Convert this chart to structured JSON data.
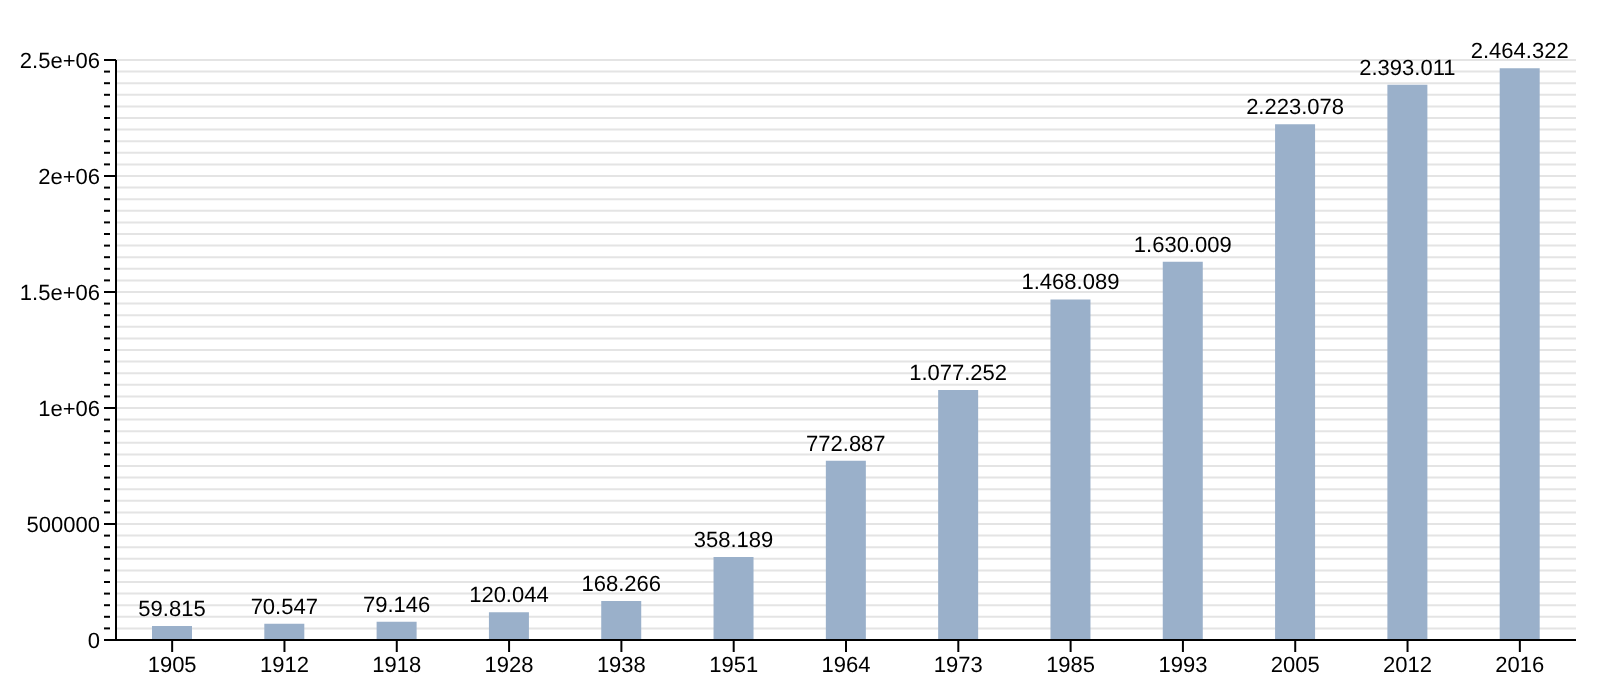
{
  "chart_data": {
    "type": "bar",
    "categories": [
      "1905",
      "1912",
      "1918",
      "1928",
      "1938",
      "1951",
      "1964",
      "1973",
      "1985",
      "1993",
      "2005",
      "2012",
      "2016"
    ],
    "values": [
      59815,
      70547,
      79146,
      120044,
      168266,
      358189,
      772887,
      1077252,
      1468089,
      1630009,
      2223078,
      2393011,
      2464322
    ],
    "value_labels": [
      "59.815",
      "70.547",
      "79.146",
      "120.044",
      "168.266",
      "358.189",
      "772.887",
      "1.077.252",
      "1.468.089",
      "1.630.009",
      "2.223.078",
      "2.393.011",
      "2.464.322"
    ],
    "color": "#9ab0ca",
    "ylim": [
      0,
      2500000
    ],
    "yticks": [
      0,
      {
        "value": 50000,
        "label": null
      },
      {
        "value": 100000,
        "label": null
      },
      {
        "value": 150000,
        "label": null
      },
      {
        "value": 200000,
        "label": null
      },
      {
        "value": 250000,
        "label": null
      },
      {
        "value": 300000,
        "label": null
      },
      {
        "value": 350000,
        "label": null
      },
      {
        "value": 400000,
        "label": null
      },
      {
        "value": 450000,
        "label": null
      },
      500000,
      {
        "value": 550000,
        "label": null
      },
      {
        "value": 600000,
        "label": null
      },
      {
        "value": 650000,
        "label": null
      },
      {
        "value": 700000,
        "label": null
      },
      {
        "value": 750000,
        "label": null
      },
      {
        "value": 800000,
        "label": null
      },
      {
        "value": 850000,
        "label": null
      },
      {
        "value": 900000,
        "label": null
      },
      {
        "value": 950000,
        "label": null
      },
      {
        "value": 1000000,
        "label": "1e+06"
      },
      {
        "value": 1050000,
        "label": null
      },
      {
        "value": 1100000,
        "label": null
      },
      {
        "value": 1150000,
        "label": null
      },
      {
        "value": 1200000,
        "label": null
      },
      {
        "value": 1250000,
        "label": null
      },
      {
        "value": 1300000,
        "label": null
      },
      {
        "value": 1350000,
        "label": null
      },
      {
        "value": 1400000,
        "label": null
      },
      {
        "value": 1450000,
        "label": null
      },
      {
        "value": 1500000,
        "label": "1.5e+06"
      },
      {
        "value": 1550000,
        "label": null
      },
      {
        "value": 1600000,
        "label": null
      },
      {
        "value": 1650000,
        "label": null
      },
      {
        "value": 1700000,
        "label": null
      },
      {
        "value": 1750000,
        "label": null
      },
      {
        "value": 1800000,
        "label": null
      },
      {
        "value": 1850000,
        "label": null
      },
      {
        "value": 1900000,
        "label": null
      },
      {
        "value": 1950000,
        "label": null
      },
      {
        "value": 2000000,
        "label": "2e+06"
      },
      {
        "value": 2050000,
        "label": null
      },
      {
        "value": 2100000,
        "label": null
      },
      {
        "value": 2150000,
        "label": null
      },
      {
        "value": 2200000,
        "label": null
      },
      {
        "value": 2250000,
        "label": null
      },
      {
        "value": 2300000,
        "label": null
      },
      {
        "value": 2350000,
        "label": null
      },
      {
        "value": 2400000,
        "label": null
      },
      {
        "value": 2450000,
        "label": null
      },
      {
        "value": 2500000,
        "label": "2.5e+06"
      }
    ],
    "grid": "y"
  }
}
